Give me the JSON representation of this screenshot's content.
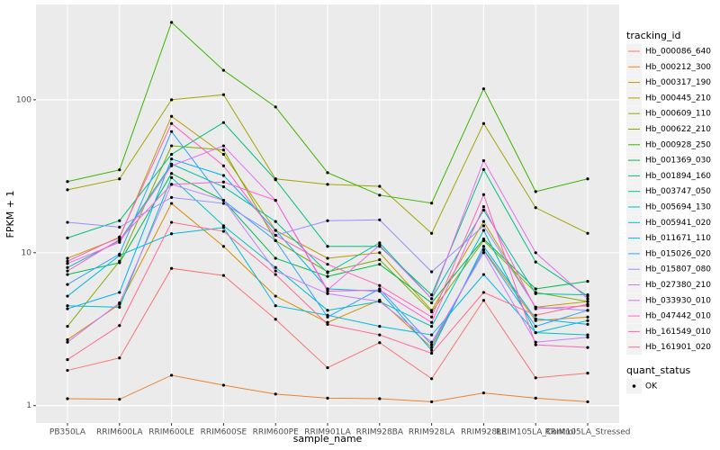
{
  "chart_data": {
    "type": "line",
    "y_label": "FPKM + 1",
    "x_label": "sample_name",
    "y_scale": "log",
    "grid": true,
    "legend_position": "right",
    "legend_title": "tracking_id",
    "point_color": "#000000",
    "categories": [
      "PB350LA",
      "RRIM600LA",
      "RRIM600LE",
      "RRIM600SE",
      "RRIM600PE",
      "RRIM901LA",
      "RRIM928BA",
      "RRIM928LA",
      "RRIM928LE",
      "RRIM105LA_Control",
      "RRIM105LA_Stressed"
    ],
    "ylim": [
      0.77,
      420
    ],
    "yticks": [
      1,
      10,
      100
    ],
    "series": [
      {
        "name": "Hb_000086_640",
        "color": "#F8766D",
        "values": [
          1.7,
          2.05,
          7.9,
          7.1,
          3.67,
          1.77,
          2.58,
          1.5,
          4.88,
          1.52,
          1.63
        ]
      },
      {
        "name": "Hb_000212_300",
        "color": "#EA8331",
        "values": [
          1.11,
          1.1,
          1.58,
          1.36,
          1.19,
          1.12,
          1.11,
          1.06,
          1.21,
          1.12,
          1.06
        ]
      },
      {
        "name": "Hb_000317_190",
        "color": "#D89000",
        "values": [
          2.7,
          4.6,
          21,
          11,
          5.2,
          3.5,
          4.9,
          2.4,
          10.5,
          3.6,
          3.8
        ]
      },
      {
        "name": "Hb_000445_210",
        "color": "#C09B00",
        "values": [
          9.2,
          12.5,
          78,
          44,
          14,
          9.2,
          10,
          4.2,
          16,
          4.4,
          4.8
        ]
      },
      {
        "name": "Hb_000609_110",
        "color": "#A3A500",
        "values": [
          25.8,
          30.4,
          100,
          108,
          30.4,
          28,
          27.2,
          13.4,
          70,
          19.7,
          13.4
        ]
      },
      {
        "name": "Hb_000622_210",
        "color": "#7CAE00",
        "values": [
          3.3,
          8.8,
          50,
          47,
          12,
          7.5,
          9,
          4.1,
          12,
          5.5,
          4.8
        ]
      },
      {
        "name": "Hb_000928_250",
        "color": "#39B600",
        "values": [
          29.2,
          34.8,
          321,
          156,
          89.8,
          33.4,
          23.8,
          21.1,
          118,
          25.1,
          30.4
        ]
      },
      {
        "name": "Hb_001369_030",
        "color": "#00BB4E",
        "values": [
          7.2,
          8.6,
          33,
          22,
          9.2,
          7,
          8.4,
          4.7,
          12.3,
          5.8,
          6.5
        ]
      },
      {
        "name": "Hb_001894_160",
        "color": "#00BF7D",
        "values": [
          12.5,
          16.2,
          44,
          71,
          30,
          11,
          11,
          5.3,
          35,
          8.7,
          5.2
        ]
      },
      {
        "name": "Hb_003747_050",
        "color": "#00C1A3",
        "values": [
          8,
          12,
          38,
          27,
          16,
          7.4,
          11.6,
          5,
          19,
          5.4,
          5.3
        ]
      },
      {
        "name": "Hb_005694_130",
        "color": "#00BFC4",
        "values": [
          4.5,
          4.4,
          31,
          15,
          8,
          4.2,
          4.8,
          3.3,
          14,
          3,
          2.9
        ]
      },
      {
        "name": "Hb_005941_020",
        "color": "#00BAE0",
        "values": [
          5.2,
          9.6,
          13.3,
          14.6,
          4.5,
          3.9,
          3.3,
          2.9,
          7.2,
          3,
          3.6
        ]
      },
      {
        "name": "Hb_011671_110",
        "color": "#00B0F6",
        "values": [
          4.3,
          5.5,
          41,
          32,
          14,
          5.8,
          5.6,
          2.3,
          11,
          3.7,
          3.4
        ]
      },
      {
        "name": "Hb_015026_020",
        "color": "#35A2FF",
        "values": [
          6.2,
          9.8,
          62,
          22,
          12,
          3.8,
          5.8,
          2.5,
          10.4,
          3.3,
          4.2
        ]
      },
      {
        "name": "Hb_015807_080",
        "color": "#9590FF",
        "values": [
          15.8,
          14.7,
          23,
          21,
          13,
          16.2,
          16.4,
          7.5,
          15,
          4.4,
          4.2
        ]
      },
      {
        "name": "Hb_027380_210",
        "color": "#C77CFF",
        "values": [
          2.6,
          4.7,
          28,
          22,
          7.6,
          5.4,
          4.8,
          2.6,
          10,
          2.6,
          2.8
        ]
      },
      {
        "name": "Hb_033930_010",
        "color": "#E76BF3",
        "values": [
          8.5,
          11.7,
          37,
          50,
          22,
          5.7,
          11.2,
          5,
          40,
          10,
          5
        ]
      },
      {
        "name": "Hb_047442_010",
        "color": "#FA62DB",
        "values": [
          7.6,
          12.2,
          28,
          29,
          22,
          5.6,
          5.7,
          3.5,
          20,
          4.3,
          4.5
        ]
      },
      {
        "name": "Hb_161549_010",
        "color": "#FF62BC",
        "values": [
          8.8,
          12.7,
          70,
          37,
          13,
          8.4,
          6.1,
          3.8,
          24,
          2.5,
          2.4
        ]
      },
      {
        "name": "Hb_161901_020",
        "color": "#FF6C91",
        "values": [
          2,
          3.34,
          15.8,
          13.8,
          7.2,
          3.4,
          2.9,
          2.2,
          5.5,
          3.9,
          4.6
        ]
      }
    ],
    "legend2_title": "quant_status",
    "legend2_labels": [
      "OK"
    ]
  }
}
